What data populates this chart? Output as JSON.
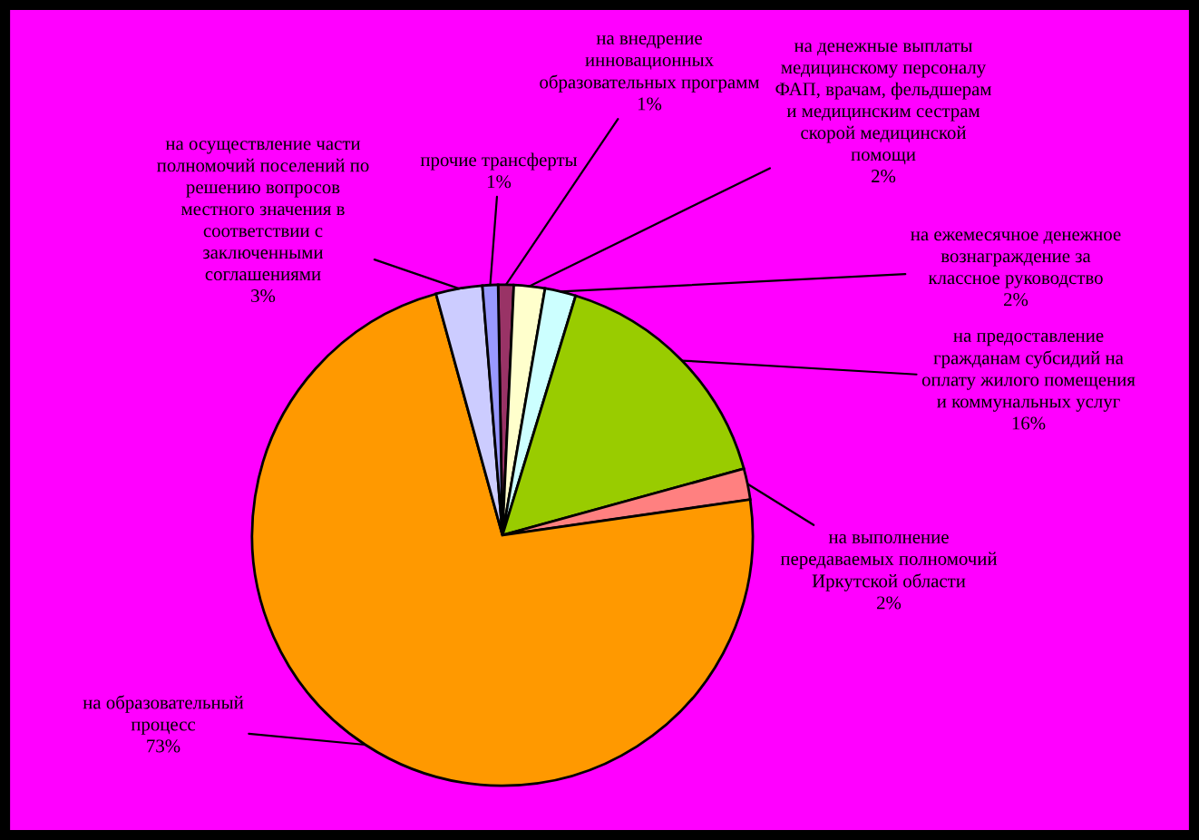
{
  "chart_data": {
    "type": "pie",
    "categories": [
      "на внедрение\nинновационных\nобразовательных программ",
      "на денежные выплаты\nмедицинскому персоналу\nФАП, врачам, фельдшерам\nи медицинским сестрам\nскорой медицинской\nпомощи",
      "на ежемесячное денежное\nвознаграждение за\nклассное руководство",
      "на предоставление\nгражданам субсидий на\nоплату жилого помещения\nи коммунальных услуг",
      "на выполнение\nпередаваемых полномочий\nИркутской области",
      "на образовательный\nпроцесс",
      "на осуществление части\nполномочий поселений по\nрешению вопросов\nместного значения в\nсоответствии с\nзаключенными\nсоглашениями",
      "прочие трансферты"
    ],
    "values": [
      1,
      2,
      2,
      16,
      2,
      73,
      3,
      1
    ],
    "colors": [
      "#993366",
      "#ffffcc",
      "#ccffff",
      "#99cc00",
      "#ff8080",
      "#ff9900",
      "#ccccff",
      "#9999ff"
    ],
    "value_labels": [
      "1%",
      "2%",
      "2%",
      "16%",
      "2%",
      "73%",
      "3%",
      "1%"
    ]
  }
}
